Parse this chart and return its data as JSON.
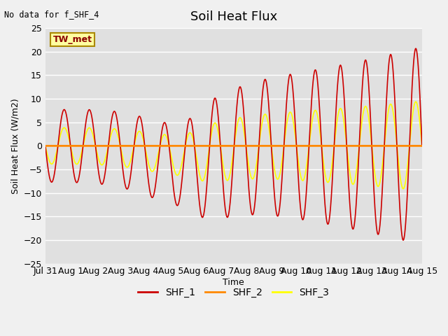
{
  "title": "Soil Heat Flux",
  "ylabel": "Soil Heat Flux (W/m2)",
  "xlabel": "Time",
  "ylim": [
    -25,
    25
  ],
  "fig_bg_color": "#f0f0f0",
  "plot_bg_color": "#e0e0e0",
  "grid_color": "#ffffff",
  "title_fontsize": 13,
  "annotation_text": "No data for f_SHF_4",
  "legend_box_text": "TW_met",
  "xtick_labels": [
    "Jul 31",
    "Aug 1",
    "Aug 2",
    "Aug 3",
    "Aug 4",
    "Aug 5",
    "Aug 6",
    "Aug 7",
    "Aug 8",
    "Aug 9",
    "Aug 10",
    "Aug 11",
    "Aug 12",
    "Aug 13",
    "Aug 14",
    "Aug 15"
  ],
  "shf1_color": "#cc0000",
  "shf2_color": "#ff8800",
  "shf3_color": "#ffff00",
  "shf1_linewidth": 1.2,
  "shf2_linewidth": 2.0,
  "shf3_linewidth": 1.2,
  "n_days": 15,
  "points_per_day": 200
}
